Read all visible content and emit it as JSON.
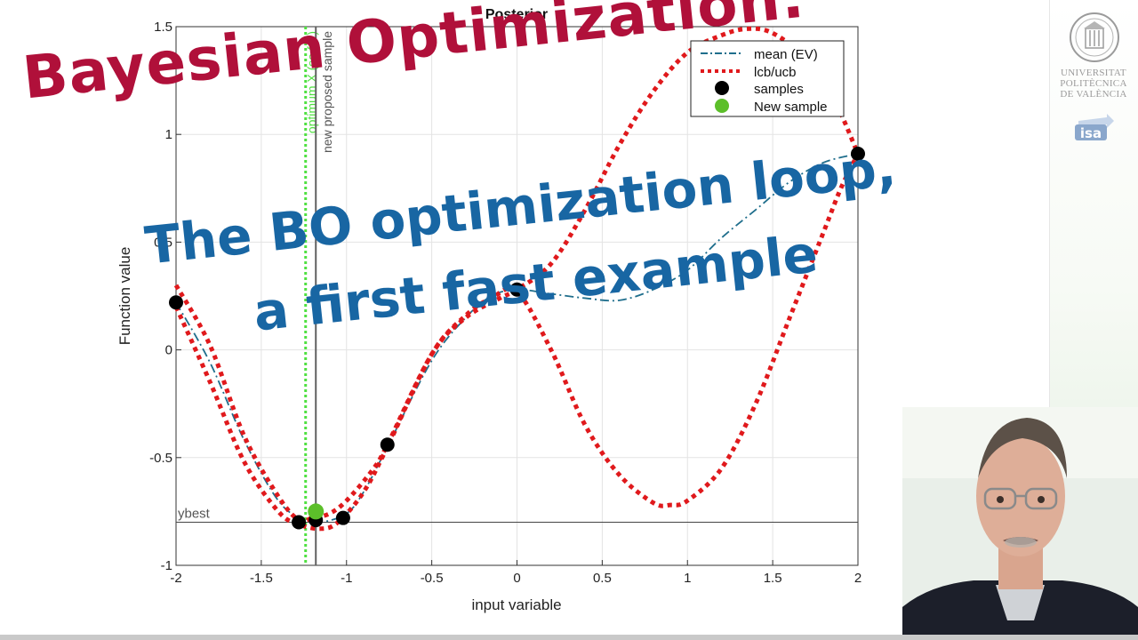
{
  "overlay": {
    "title": "Bayesian Optimization:",
    "subtitle_line1": "The BO optimization loop,",
    "subtitle_line2": "a first fast example"
  },
  "branding": {
    "university_lines": [
      "UNIVERSITAT",
      "POLITÈCNICA",
      "DE VALÈNCIA"
    ],
    "isa_logo_text": "isa"
  },
  "colors": {
    "overlay_title": "#b0103a",
    "overlay_subtitle": "#1866a3",
    "mean_line": "#1f6e8c",
    "bounds": "#e0191c",
    "samples": "#000000",
    "new_sample": "#5cbf2a",
    "optimum_line": "#4fe040",
    "proposal_line": "#606060"
  },
  "chart_data": {
    "type": "line",
    "title": "Posterior",
    "xlabel": "input variable",
    "ylabel": "Function value",
    "xlim": [
      -2,
      2
    ],
    "ylim": [
      -1,
      1.5
    ],
    "x_ticks": [
      "-2",
      "-1.5",
      "-1",
      "-0.5",
      "0",
      "0.5",
      "1",
      "1.5",
      "2"
    ],
    "y_ticks": [
      "-1",
      "-0.5",
      "0",
      "0.5",
      "1",
      "1.5"
    ],
    "grid": true,
    "legend_position": "top-right",
    "legend_entries": [
      "mean (EV)",
      "lcb/ucb",
      "samples",
      "New sample"
    ],
    "series": [
      {
        "name": "mean (EV)",
        "style": "dash-dot",
        "x": [
          -2,
          -1.8,
          -1.6,
          -1.4,
          -1.25,
          -1.15,
          -1.0,
          -0.9,
          -0.76,
          -0.5,
          -0.3,
          -0.15,
          0,
          0.2,
          0.4,
          0.6,
          0.8,
          1.0,
          1.2,
          1.4,
          1.6,
          1.8,
          2.0
        ],
        "y": [
          0.22,
          -0.06,
          -0.42,
          -0.7,
          -0.79,
          -0.8,
          -0.76,
          -0.66,
          -0.45,
          -0.05,
          0.15,
          0.25,
          0.28,
          0.26,
          0.24,
          0.23,
          0.28,
          0.37,
          0.52,
          0.65,
          0.78,
          0.87,
          0.91
        ]
      },
      {
        "name": "lcb/ucb upper",
        "style": "dotted",
        "x": [
          -2,
          -1.8,
          -1.6,
          -1.4,
          -1.28,
          -1.2,
          -1.1,
          -1.0,
          -0.85,
          -0.76,
          -0.5,
          -0.3,
          -0.1,
          0,
          0.2,
          0.4,
          0.6,
          0.8,
          1.0,
          1.2,
          1.35,
          1.5,
          1.7,
          1.85,
          2.0
        ],
        "y": [
          0.3,
          0.02,
          -0.4,
          -0.68,
          -0.79,
          -0.78,
          -0.76,
          -0.7,
          -0.56,
          -0.44,
          -0.02,
          0.15,
          0.24,
          0.28,
          0.4,
          0.65,
          0.95,
          1.2,
          1.38,
          1.46,
          1.49,
          1.47,
          1.35,
          1.18,
          0.91
        ]
      },
      {
        "name": "lcb/ucb lower",
        "style": "dotted",
        "x": [
          -2,
          -1.8,
          -1.6,
          -1.4,
          -1.28,
          -1.15,
          -1.05,
          -0.9,
          -0.76,
          -0.5,
          -0.3,
          -0.15,
          0,
          0.2,
          0.4,
          0.6,
          0.8,
          0.9,
          1.0,
          1.2,
          1.4,
          1.6,
          1.8,
          1.9,
          2.0
        ],
        "y": [
          0.2,
          -0.15,
          -0.52,
          -0.75,
          -0.81,
          -0.83,
          -0.8,
          -0.66,
          -0.45,
          -0.02,
          0.16,
          0.24,
          0.27,
          0.0,
          -0.35,
          -0.58,
          -0.71,
          -0.72,
          -0.7,
          -0.55,
          -0.25,
          0.15,
          0.55,
          0.75,
          0.91
        ]
      }
    ],
    "samples": [
      {
        "x": -2.0,
        "y": 0.22
      },
      {
        "x": -1.28,
        "y": -0.8
      },
      {
        "x": -1.18,
        "y": -0.79
      },
      {
        "x": -1.02,
        "y": -0.78
      },
      {
        "x": -0.76,
        "y": -0.44
      },
      {
        "x": 0.0,
        "y": 0.28
      },
      {
        "x": 2.0,
        "y": 0.91
      }
    ],
    "new_sample": {
      "x": -1.18,
      "y": -0.75
    },
    "vertical_lines": [
      {
        "x": -1.24,
        "label": "optimum X (so far)",
        "style": "dotted"
      },
      {
        "x": -1.18,
        "label": "new proposed sample",
        "style": "solid"
      }
    ],
    "horizontal_lines": [
      {
        "y": -0.8,
        "label": "ybest"
      }
    ]
  }
}
